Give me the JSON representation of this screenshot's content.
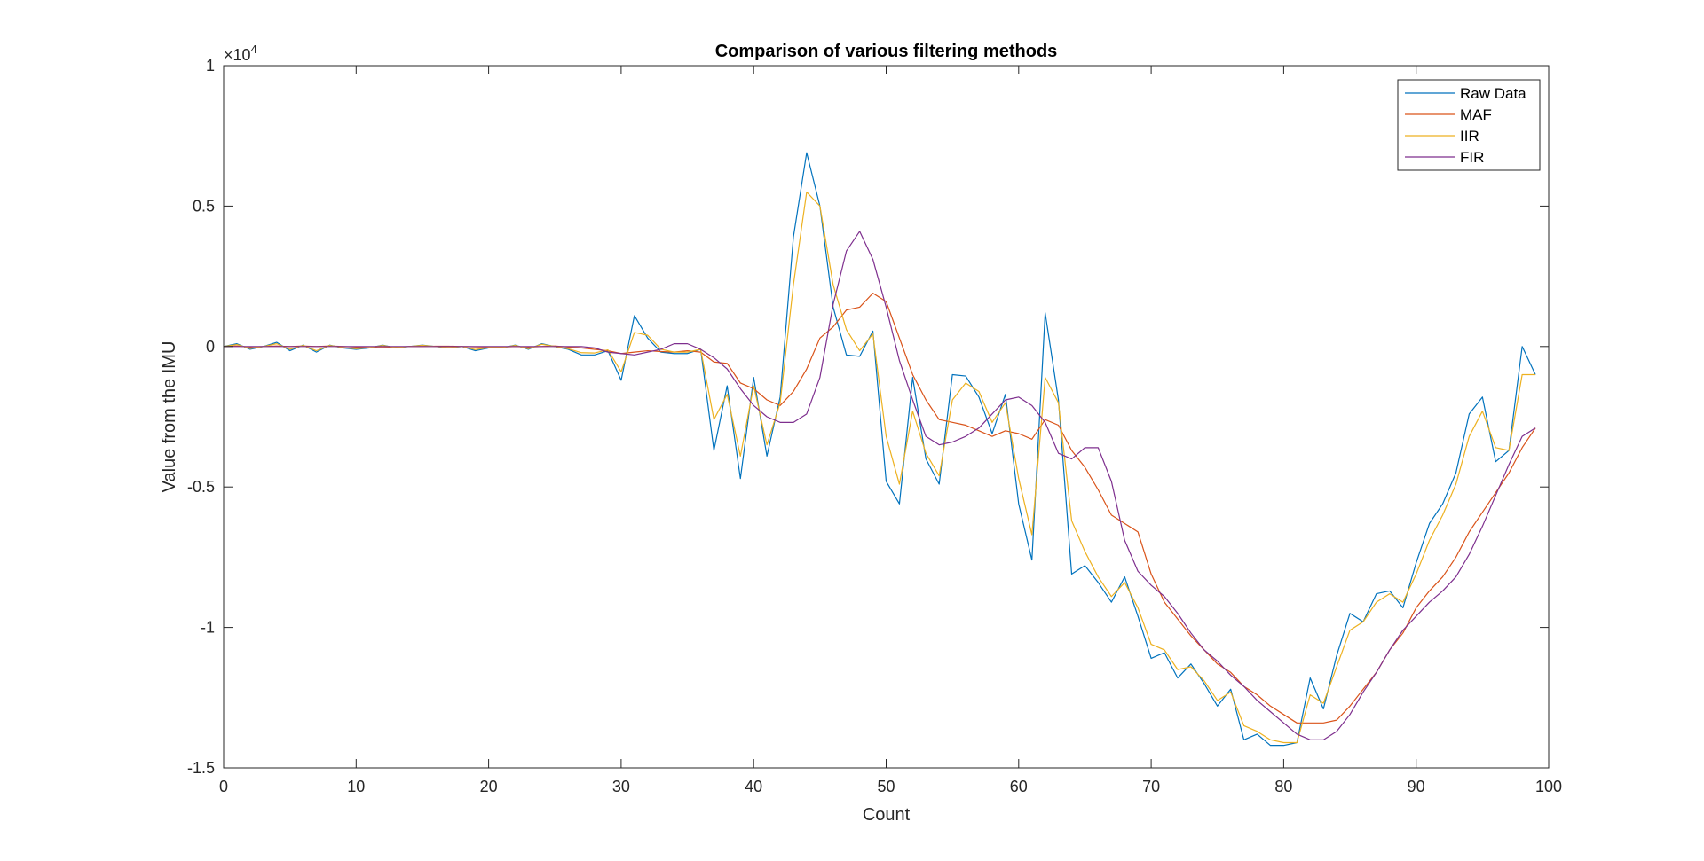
{
  "chart_data": {
    "type": "line",
    "title": "Comparison of various filtering methods",
    "xlabel": "Count",
    "ylabel": "Value from the IMU",
    "y_exponent_label": "×10",
    "y_exponent_power": "4",
    "y_scale": 10000,
    "xlim": [
      0,
      100
    ],
    "ylim": [
      -15000,
      10000
    ],
    "x_ticks": [
      0,
      10,
      20,
      30,
      40,
      50,
      60,
      70,
      80,
      90,
      100
    ],
    "x_tick_labels": [
      "0",
      "10",
      "20",
      "30",
      "40",
      "50",
      "60",
      "70",
      "80",
      "90",
      "100"
    ],
    "y_ticks": [
      10000,
      5000,
      0,
      -5000,
      -10000,
      -15000
    ],
    "y_tick_labels": [
      "1",
      "0.5",
      "0",
      "-0.5",
      "-1",
      "-1.5"
    ],
    "grid": false,
    "legend_position": "top-right",
    "x": [
      0,
      1,
      2,
      3,
      4,
      5,
      6,
      7,
      8,
      9,
      10,
      11,
      12,
      13,
      14,
      15,
      16,
      17,
      18,
      19,
      20,
      21,
      22,
      23,
      24,
      25,
      26,
      27,
      28,
      29,
      30,
      31,
      32,
      33,
      34,
      35,
      36,
      37,
      38,
      39,
      40,
      41,
      42,
      43,
      44,
      45,
      46,
      47,
      48,
      49,
      50,
      51,
      52,
      53,
      54,
      55,
      56,
      57,
      58,
      59,
      60,
      61,
      62,
      63,
      64,
      65,
      66,
      67,
      68,
      69,
      70,
      71,
      72,
      73,
      74,
      75,
      76,
      77,
      78,
      79,
      80,
      81,
      82,
      83,
      84,
      85,
      86,
      87,
      88,
      89,
      90,
      91,
      92,
      93,
      94,
      95,
      96,
      97,
      98,
      99
    ],
    "series": [
      {
        "name": "Raw Data",
        "color": "#0072BD",
        "values": [
          0,
          100,
          -100,
          0,
          150,
          -150,
          50,
          -200,
          50,
          -50,
          -100,
          -50,
          50,
          -50,
          0,
          50,
          0,
          -50,
          0,
          -150,
          -50,
          -50,
          50,
          -100,
          100,
          0,
          -100,
          -300,
          -300,
          -150,
          -1200,
          1100,
          300,
          -200,
          -250,
          -250,
          -100,
          -3700,
          -1400,
          -4700,
          -1100,
          -3900,
          -1800,
          3900,
          6900,
          5000,
          1400,
          -300,
          -350,
          550,
          -4800,
          -5600,
          -1100,
          -4000,
          -4900,
          -1000,
          -1050,
          -1800,
          -3100,
          -1700,
          -5600,
          -7600,
          1200,
          -1900,
          -8100,
          -7800,
          -8400,
          -9100,
          -8200,
          -9600,
          -11100,
          -10900,
          -11800,
          -11300,
          -12000,
          -12800,
          -12200,
          -14000,
          -13800,
          -14200,
          -14200,
          -14100,
          -11800,
          -12900,
          -11000,
          -9500,
          -9800,
          -8800,
          -8700,
          -9300,
          -7700,
          -6300,
          -5600,
          -4500,
          -2400,
          -1800,
          -4100,
          -3700,
          0,
          -1000
        ]
      },
      {
        "name": "MAF",
        "color": "#D95319",
        "values": [
          0,
          20,
          -20,
          0,
          20,
          0,
          20,
          0,
          20,
          0,
          -20,
          -40,
          -40,
          -20,
          0,
          0,
          10,
          10,
          0,
          -10,
          -20,
          -20,
          0,
          -20,
          0,
          20,
          -20,
          -50,
          -100,
          -150,
          -250,
          -200,
          -150,
          -180,
          -200,
          -150,
          -200,
          -550,
          -600,
          -1300,
          -1500,
          -1900,
          -2100,
          -1600,
          -800,
          300,
          700,
          1300,
          1400,
          1900,
          1600,
          300,
          -1000,
          -1900,
          -2600,
          -2700,
          -2800,
          -3000,
          -3200,
          -3000,
          -3100,
          -3300,
          -2600,
          -2800,
          -3700,
          -4300,
          -5100,
          -6000,
          -6300,
          -6600,
          -8100,
          -9100,
          -9700,
          -10300,
          -10800,
          -11300,
          -11600,
          -12100,
          -12400,
          -12800,
          -13100,
          -13400,
          -13400,
          -13400,
          -13300,
          -12800,
          -12200,
          -11600,
          -10800,
          -10200,
          -9300,
          -8700,
          -8200,
          -7500,
          -6600,
          -5900,
          -5200,
          -4500,
          -3600,
          -2900
        ]
      },
      {
        "name": "IIR",
        "color": "#EDB120",
        "values": [
          0,
          70,
          -70,
          0,
          100,
          -100,
          40,
          -150,
          40,
          -40,
          -80,
          -40,
          40,
          -40,
          0,
          40,
          0,
          -40,
          0,
          -110,
          -40,
          -40,
          40,
          -80,
          80,
          0,
          -80,
          -220,
          -230,
          -120,
          -900,
          500,
          400,
          -100,
          -200,
          -200,
          -100,
          -2600,
          -1700,
          -3900,
          -1400,
          -3500,
          -2000,
          2200,
          5500,
          5000,
          2200,
          600,
          -150,
          450,
          -3200,
          -4900,
          -2300,
          -3800,
          -4600,
          -1900,
          -1300,
          -1600,
          -2700,
          -2000,
          -4700,
          -6700,
          -1100,
          -2000,
          -6200,
          -7300,
          -8200,
          -8900,
          -8400,
          -9300,
          -10600,
          -10800,
          -11500,
          -11400,
          -11900,
          -12600,
          -12300,
          -13500,
          -13700,
          -14000,
          -14100,
          -14100,
          -12400,
          -12700,
          -11400,
          -10100,
          -9800,
          -9100,
          -8800,
          -9100,
          -8100,
          -6900,
          -6000,
          -4900,
          -3200,
          -2300,
          -3600,
          -3700,
          -1000,
          -1000
        ]
      },
      {
        "name": "FIR",
        "color": "#7E2F8E",
        "values": [
          0,
          0,
          0,
          0,
          0,
          0,
          0,
          0,
          0,
          0,
          0,
          0,
          0,
          0,
          0,
          0,
          0,
          0,
          0,
          0,
          0,
          0,
          0,
          0,
          0,
          0,
          0,
          0,
          -50,
          -200,
          -250,
          -300,
          -200,
          -100,
          100,
          100,
          -100,
          -400,
          -800,
          -1500,
          -2100,
          -2500,
          -2700,
          -2700,
          -2400,
          -1100,
          1500,
          3400,
          4100,
          3100,
          1400,
          -500,
          -1900,
          -3200,
          -3500,
          -3400,
          -3200,
          -2900,
          -2400,
          -1900,
          -1800,
          -2100,
          -2700,
          -3800,
          -4000,
          -3600,
          -3600,
          -4800,
          -6900,
          -8000,
          -8500,
          -8900,
          -9500,
          -10200,
          -10800,
          -11200,
          -11700,
          -12100,
          -12600,
          -13000,
          -13400,
          -13800,
          -14000,
          -14000,
          -13700,
          -13100,
          -12300,
          -11600,
          -10800,
          -10100,
          -9600,
          -9100,
          -8700,
          -8200,
          -7400,
          -6400,
          -5300,
          -4200,
          -3200,
          -2900
        ]
      }
    ]
  }
}
